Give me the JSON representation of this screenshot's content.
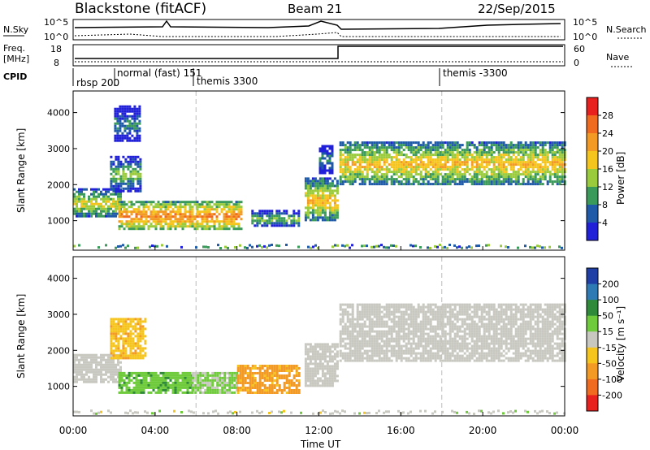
{
  "header": {
    "radar": "Blackstone (fitACF)",
    "beam": "Beam 21",
    "date": "22/Sep/2015"
  },
  "panels": {
    "top": {
      "nsky_label": "N.Sky",
      "nsearch_label": "N.Search",
      "left_ticks": [
        "10^5",
        "10^0"
      ],
      "right_ticks": [
        "10^5",
        "10^0"
      ]
    },
    "freq": {
      "label_line1": "Freq.",
      "label_line2": "[MHz]",
      "nave_label": "Nave",
      "left_ticks": [
        "18",
        "8"
      ],
      "right_ticks": [
        "60",
        "0"
      ]
    },
    "cpid": {
      "label": "CPID",
      "segments": [
        "rbsp 200",
        "normal (fast) 151",
        "themis 3300",
        "themis -3300"
      ]
    }
  },
  "colorbars": {
    "power": {
      "title": "Power [dB]",
      "labels": [
        "28",
        "24",
        "20",
        "16",
        "12",
        "8",
        "4"
      ],
      "colors": [
        "#e8201e",
        "#f06a20",
        "#f39a25",
        "#f5c51e",
        "#9acb3c",
        "#3a9a5a",
        "#1f5aa8",
        "#2020d8"
      ]
    },
    "velocity": {
      "title": "Velocity [m s⁻¹]",
      "labels": [
        "200",
        "100",
        "50",
        "15",
        "-15",
        "-50",
        "-100",
        "-200"
      ],
      "colors": [
        "#1f3fa6",
        "#2e7ab5",
        "#2f8a3a",
        "#6fcb3b",
        "#c8c8c0",
        "#f5c51e",
        "#f39a25",
        "#f06a20",
        "#e8201e"
      ]
    }
  },
  "axes": {
    "ylabel": "Slant Range [km]",
    "xlabel": "Time UT",
    "y_ticks": [
      "1000",
      "2000",
      "3000",
      "4000"
    ],
    "x_ticks": [
      "00:00",
      "04:00",
      "08:00",
      "12:00",
      "16:00",
      "20:00",
      "00:00"
    ]
  },
  "chart_data": [
    {
      "type": "heatmap",
      "title": "Power [dB]",
      "xlabel": "Time UT",
      "ylabel": "Slant Range [km]",
      "x_range_hours": [
        0,
        24
      ],
      "y_range_km": [
        180,
        4600
      ],
      "y_ticks": [
        1000,
        2000,
        3000,
        4000
      ],
      "x_ticks": [
        "00:00",
        "04:00",
        "08:00",
        "12:00",
        "16:00",
        "20:00",
        "00:00"
      ],
      "color_scale_db": [
        4,
        8,
        12,
        16,
        20,
        24,
        28
      ],
      "regions": [
        {
          "t": [
            0.0,
            2.3
          ],
          "r": [
            1100,
            1900
          ],
          "level": 18
        },
        {
          "t": [
            1.8,
            3.3
          ],
          "r": [
            1800,
            2800
          ],
          "level": 14
        },
        {
          "t": [
            2.0,
            3.2
          ],
          "r": [
            3200,
            4200
          ],
          "level": 10
        },
        {
          "t": [
            2.2,
            8.2
          ],
          "r": [
            750,
            1550
          ],
          "level": 24
        },
        {
          "t": [
            8.7,
            11.0
          ],
          "r": [
            850,
            1300
          ],
          "level": 14
        },
        {
          "t": [
            11.3,
            12.9
          ],
          "r": [
            1000,
            2200
          ],
          "level": 20
        },
        {
          "t": [
            12.0,
            12.6
          ],
          "r": [
            2300,
            3100
          ],
          "level": 10
        },
        {
          "t": [
            13.0,
            24.0
          ],
          "r": [
            2000,
            3200
          ],
          "level": 20
        }
      ]
    },
    {
      "type": "heatmap",
      "title": "Velocity [m s⁻¹]",
      "xlabel": "Time UT",
      "ylabel": "Slant Range [km]",
      "x_range_hours": [
        0,
        24
      ],
      "y_range_km": [
        180,
        4600
      ],
      "y_ticks": [
        1000,
        2000,
        3000,
        4000
      ],
      "x_ticks": [
        "00:00",
        "04:00",
        "08:00",
        "12:00",
        "16:00",
        "20:00",
        "00:00"
      ],
      "color_scale_ms": [
        -200,
        -100,
        -50,
        -15,
        15,
        50,
        100,
        200
      ],
      "regions": [
        {
          "t": [
            0.0,
            2.3
          ],
          "r": [
            1100,
            1900
          ],
          "velocity": 0
        },
        {
          "t": [
            1.8,
            3.5
          ],
          "r": [
            1800,
            2900
          ],
          "velocity": -40
        },
        {
          "t": [
            2.2,
            5.8
          ],
          "r": [
            800,
            1400
          ],
          "velocity": 40
        },
        {
          "t": [
            5.8,
            8.0
          ],
          "r": [
            800,
            1400
          ],
          "velocity": 20
        },
        {
          "t": [
            8.0,
            11.0
          ],
          "r": [
            850,
            1600
          ],
          "velocity": -60
        },
        {
          "t": [
            11.3,
            12.9
          ],
          "r": [
            1000,
            2200
          ],
          "velocity": 0
        },
        {
          "t": [
            13.0,
            24.0
          ],
          "r": [
            1700,
            3300
          ],
          "velocity": 0
        }
      ]
    }
  ]
}
